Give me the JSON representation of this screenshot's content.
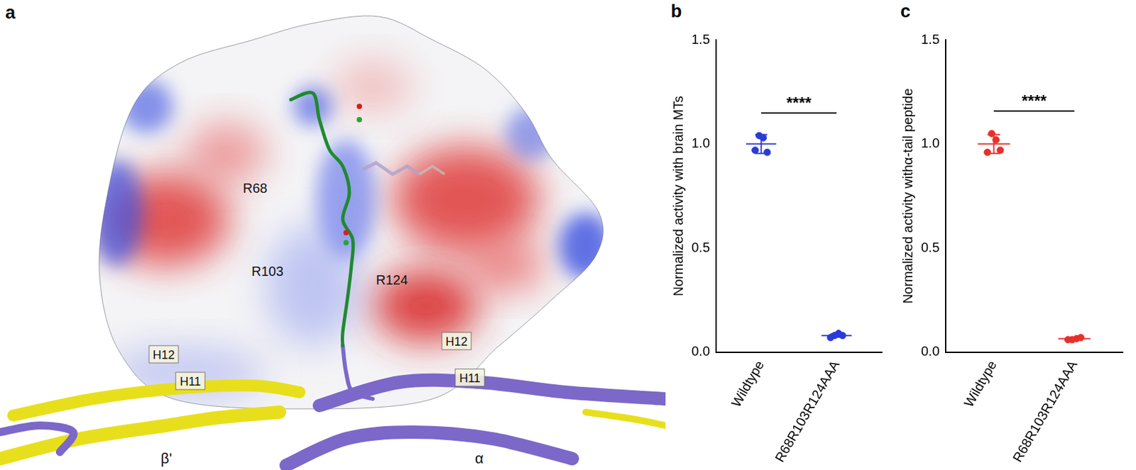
{
  "panel_a": {
    "panel_label": "a",
    "residue_labels": [
      "R68",
      "R103",
      "R124"
    ],
    "helix_labels": [
      "H12",
      "H11",
      "H12",
      "H11"
    ],
    "subunit_labels": [
      "β'",
      "α"
    ]
  },
  "chart_data": [
    {
      "type": "scatter",
      "panel_label": "b",
      "categories": [
        "Wildtype",
        "R68R103R124AAA"
      ],
      "values": [
        [
          0.97,
          1.04,
          1.03,
          0.96
        ],
        [
          0.07,
          0.08,
          0.09,
          0.08
        ]
      ],
      "mean": [
        1.0,
        0.08
      ],
      "error": [
        0.045,
        0.008
      ],
      "ylabel": "Normalized activity with brain MTs",
      "ylim": [
        0,
        1.5
      ],
      "yticks": [
        {
          "value": 0,
          "label": "0.0"
        },
        0.5,
        {
          "value": 1,
          "label": "1.0"
        },
        1.5
      ],
      "color": "#2b3bd9",
      "grid": false,
      "annotations": [
        "****"
      ]
    },
    {
      "type": "scatter",
      "panel_label": "c",
      "categories": [
        "Wildtype",
        "R68R103R124AAA"
      ],
      "values": [
        [
          0.96,
          1.05,
          1.02,
          0.97
        ],
        [
          0.06,
          0.06,
          0.065,
          0.07
        ]
      ],
      "mean": [
        1.0,
        0.065
      ],
      "error": [
        0.045,
        0.005
      ],
      "ylabel": "Normalized activity withα-tail peptide",
      "ylim": [
        0,
        1.5
      ],
      "yticks": [
        {
          "value": 0,
          "label": "0.0"
        },
        0.5,
        {
          "value": 1,
          "label": "1.0"
        },
        1.5
      ],
      "color": "#e8302a",
      "grid": false,
      "annotations": [
        "****"
      ]
    }
  ]
}
